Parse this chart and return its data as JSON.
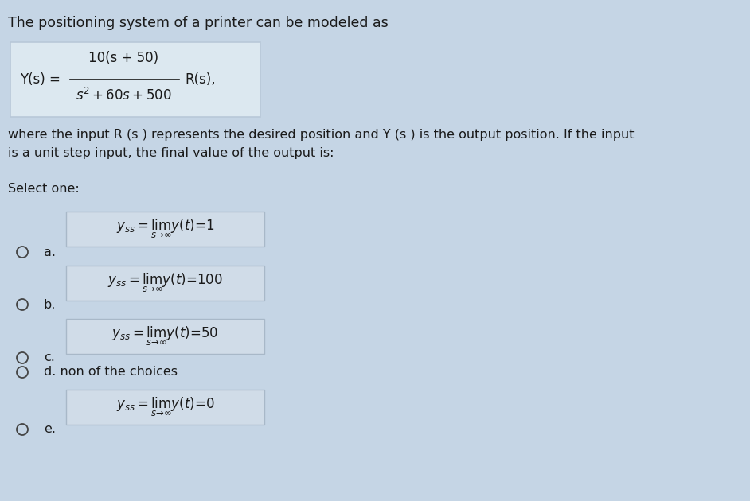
{
  "bg_color": "#c5d5e5",
  "title_text": "The positioning system of a printer can be modeled as",
  "formula_box_color": "#dce8f0",
  "formula_box_border": "#b8c8d8",
  "description_text": "where the input R (s ) represents the desired position and Y (s ) is the output position. If the input\nis a unit step input, the final value of the output is:",
  "select_one_text": "Select one:",
  "options": [
    {
      "label": "a.",
      "formula_tex": "$y_{ss} = \\lim_{s\\to\\infty} y(t) = 1$",
      "has_box": true
    },
    {
      "label": "b.",
      "formula_tex": "$y_{ss} = \\lim_{s\\to\\infty} y(t) = 100$",
      "has_box": true
    },
    {
      "label": "c.",
      "formula_tex": "$y_{ss} = \\lim_{s\\to\\infty} y(t) = 50$",
      "has_box": true
    },
    {
      "label": "d.",
      "formula_tex": "non of the choices",
      "has_box": false
    },
    {
      "label": "e.",
      "formula_tex": "$y_{ss} = \\lim_{s\\to\\infty} y(t) = 0$",
      "has_box": false
    }
  ],
  "option_box_color": "#d0dce8",
  "option_box_border": "#a8b8c8",
  "text_color": "#1a1a1a",
  "circle_color": "#444444",
  "font_size_title": 12.5,
  "font_size_body": 11.5,
  "font_size_formula": 12,
  "font_size_option": 12
}
